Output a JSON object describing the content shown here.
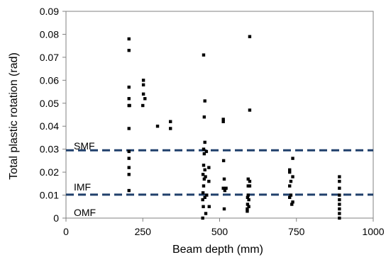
{
  "chart_data": {
    "type": "scatter",
    "title": "",
    "xlabel": "Beam depth (mm)",
    "ylabel": "Total plastic rotation (rad)",
    "xlim": [
      0,
      1000
    ],
    "ylim": [
      0,
      0.09
    ],
    "xticks": [
      0,
      250,
      500,
      750,
      1000
    ],
    "yticks": [
      0,
      0.01,
      0.02,
      0.03,
      0.04,
      0.05,
      0.06,
      0.07,
      0.08,
      0.09
    ],
    "xtick_labels": [
      "0",
      "250",
      "500",
      "750",
      "1000"
    ],
    "ytick_labels": [
      "0",
      "0.01",
      "0.02",
      "0.03",
      "0.04",
      "0.05",
      "0.06",
      "0.07",
      "0.08",
      "0.09"
    ],
    "grid": false,
    "reference_lines": [
      {
        "label": "SMF",
        "y": 0.0295
      },
      {
        "label": "IMF",
        "y": 0.0102
      }
    ],
    "region_labels": [
      {
        "text": "SMF",
        "y": 0.0315
      },
      {
        "text": "IMF",
        "y": 0.0135
      },
      {
        "text": "OMF",
        "y": 0.0025
      }
    ],
    "points": [
      [
        205,
        0.078
      ],
      [
        205,
        0.073
      ],
      [
        205,
        0.057
      ],
      [
        205,
        0.052
      ],
      [
        205,
        0.049
      ],
      [
        207,
        0.049
      ],
      [
        205,
        0.039
      ],
      [
        205,
        0.029
      ],
      [
        205,
        0.026
      ],
      [
        205,
        0.022
      ],
      [
        205,
        0.019
      ],
      [
        205,
        0.012
      ],
      [
        252,
        0.06
      ],
      [
        252,
        0.058
      ],
      [
        252,
        0.054
      ],
      [
        257,
        0.052
      ],
      [
        250,
        0.049
      ],
      [
        298,
        0.04
      ],
      [
        340,
        0.042
      ],
      [
        340,
        0.039
      ],
      [
        448,
        0.071
      ],
      [
        452,
        0.051
      ],
      [
        450,
        0.044
      ],
      [
        452,
        0.033
      ],
      [
        448,
        0.03
      ],
      [
        457,
        0.029
      ],
      [
        450,
        0.028
      ],
      [
        448,
        0.023
      ],
      [
        452,
        0.021
      ],
      [
        446,
        0.019
      ],
      [
        454,
        0.018
      ],
      [
        450,
        0.017
      ],
      [
        448,
        0.014
      ],
      [
        446,
        0.011
      ],
      [
        458,
        0.01
      ],
      [
        452,
        0.009
      ],
      [
        445,
        0.008
      ],
      [
        447,
        0.005
      ],
      [
        455,
        0.002
      ],
      [
        445,
        0.0
      ],
      [
        465,
        0.022
      ],
      [
        465,
        0.016
      ],
      [
        466,
        0.005
      ],
      [
        512,
        0.043
      ],
      [
        512,
        0.042
      ],
      [
        513,
        0.025
      ],
      [
        515,
        0.017
      ],
      [
        512,
        0.013
      ],
      [
        517,
        0.012
      ],
      [
        521,
        0.013
      ],
      [
        515,
        0.004
      ],
      [
        598,
        0.079
      ],
      [
        598,
        0.047
      ],
      [
        593,
        0.017
      ],
      [
        598,
        0.016
      ],
      [
        593,
        0.014
      ],
      [
        598,
        0.014
      ],
      [
        593,
        0.01
      ],
      [
        591,
        0.009
      ],
      [
        595,
        0.008
      ],
      [
        591,
        0.006
      ],
      [
        595,
        0.005
      ],
      [
        590,
        0.004
      ],
      [
        590,
        0.003
      ],
      [
        728,
        0.021
      ],
      [
        728,
        0.02
      ],
      [
        738,
        0.026
      ],
      [
        738,
        0.018
      ],
      [
        732,
        0.016
      ],
      [
        728,
        0.014
      ],
      [
        732,
        0.01
      ],
      [
        728,
        0.009
      ],
      [
        738,
        0.007
      ],
      [
        735,
        0.006
      ],
      [
        890,
        0.018
      ],
      [
        890,
        0.016
      ],
      [
        890,
        0.013
      ],
      [
        890,
        0.01
      ],
      [
        890,
        0.008
      ],
      [
        890,
        0.006
      ],
      [
        890,
        0.004
      ],
      [
        890,
        0.002
      ],
      [
        890,
        0.0
      ]
    ],
    "colors": {
      "point": "#000000",
      "reference_line": "#1f3f6b",
      "axis": "#808080"
    }
  }
}
